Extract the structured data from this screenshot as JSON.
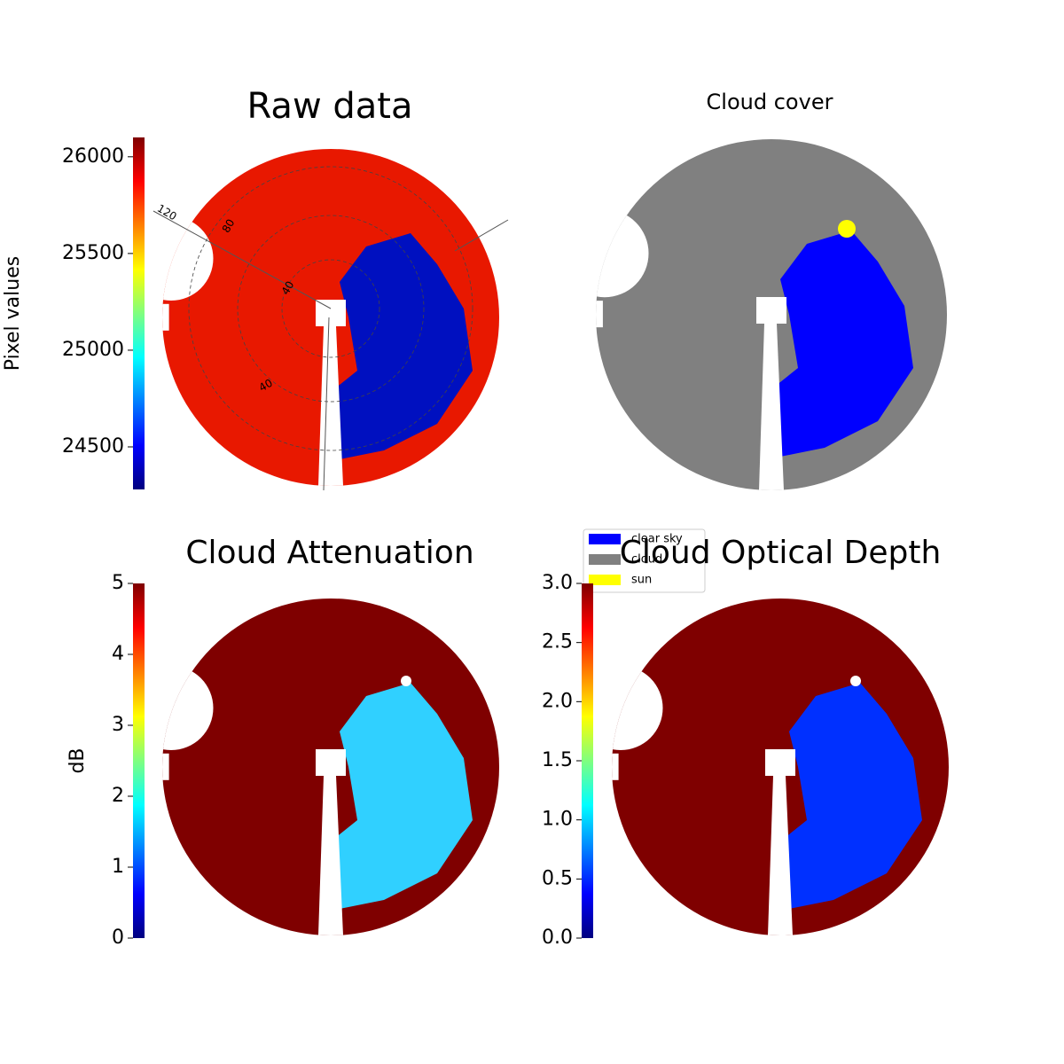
{
  "chart_data": [
    {
      "type": "image",
      "title": "Raw data",
      "colorbar_label": "Pixel values",
      "clim": [
        24280,
        26100
      ],
      "cticks": [
        24500,
        25000,
        25500,
        26000
      ],
      "annotations": [
        "120",
        "80",
        "40",
        "40"
      ]
    },
    {
      "type": "image",
      "title": "Cloud cover",
      "legend": [
        {
          "name": "clear sky",
          "color": "#0000ff"
        },
        {
          "name": "cloud",
          "color": "#808080"
        },
        {
          "name": "sun",
          "color": "#ffff00"
        }
      ]
    },
    {
      "type": "image",
      "title": "Cloud Attenuation",
      "colorbar_label": "dB",
      "clim": [
        0,
        5
      ],
      "cticks": [
        0,
        1,
        2,
        3,
        4,
        5
      ]
    },
    {
      "type": "image",
      "title": "Cloud Optical Depth",
      "clim": [
        0,
        3
      ],
      "cticks": [
        {
          "value": 0,
          "label": "0.0"
        },
        {
          "value": 0.5,
          "label": "0.5"
        },
        {
          "value": 1,
          "label": "1.0"
        },
        {
          "value": 1.5,
          "label": "1.5"
        },
        {
          "value": 2,
          "label": "2.0"
        },
        {
          "value": 2.5,
          "label": "2.5"
        },
        {
          "value": 3,
          "label": "3.0"
        }
      ]
    }
  ]
}
